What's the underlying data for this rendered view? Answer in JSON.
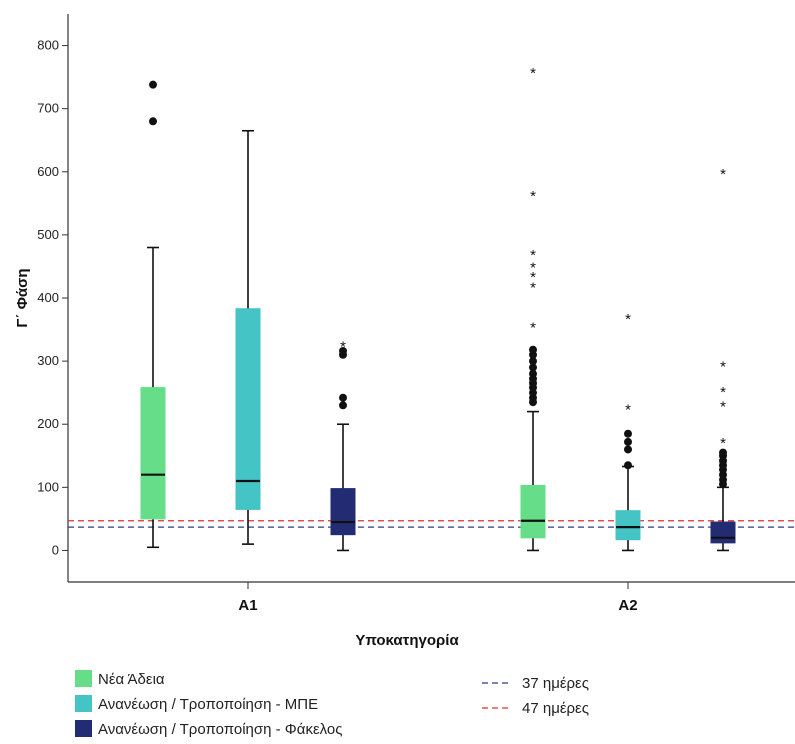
{
  "chart_data": {
    "type": "boxplot",
    "xlabel": "Υποκατηγορία",
    "ylabel": "Γ΄ Φάση",
    "ylim": [
      -50,
      850
    ],
    "yticks": [
      0,
      100,
      200,
      300,
      400,
      500,
      600,
      700,
      800
    ],
    "categories": [
      "A1",
      "A2"
    ],
    "series": [
      {
        "name": "Νέα Άδεια",
        "color": "#66dd88"
      },
      {
        "name": "Ανανέωση / Τροποποίηση - ΜΠΕ",
        "color": "#44c4c4"
      },
      {
        "name": "Ανανέωση / Τροποποίηση - Φάκελος",
        "color": "#232c72"
      }
    ],
    "boxes": [
      {
        "category": "A1",
        "series": 0,
        "min": 5,
        "q1": 50,
        "median": 120,
        "q3": 258,
        "max": 480,
        "outliers": [
          680,
          738
        ],
        "extremes": []
      },
      {
        "category": "A1",
        "series": 1,
        "min": 10,
        "q1": 65,
        "median": 110,
        "q3": 383,
        "max": 665,
        "outliers": [],
        "extremes": []
      },
      {
        "category": "A1",
        "series": 2,
        "min": 0,
        "q1": 25,
        "median": 45,
        "q3": 98,
        "max": 200,
        "outliers": [
          230,
          242,
          310,
          316
        ],
        "extremes": [
          325
        ]
      },
      {
        "category": "A2",
        "series": 0,
        "min": 0,
        "q1": 20,
        "median": 47,
        "q3": 103,
        "max": 220,
        "outliers": [
          235,
          242,
          250,
          258,
          265,
          272,
          280,
          290,
          300,
          310,
          318
        ],
        "extremes": [
          355,
          418,
          435,
          450,
          470,
          563,
          758
        ]
      },
      {
        "category": "A2",
        "series": 1,
        "min": 0,
        "q1": 17,
        "median": 37,
        "q3": 63,
        "max": 133,
        "outliers": [
          135,
          160,
          172,
          185
        ],
        "extremes": [
          225,
          368
        ]
      },
      {
        "category": "A2",
        "series": 2,
        "min": 0,
        "q1": 12,
        "median": 20,
        "q3": 45,
        "max": 100,
        "outliers": [
          105,
          112,
          120,
          128,
          135,
          142,
          150,
          155
        ],
        "extremes": [
          172,
          230,
          253,
          293,
          598
        ]
      }
    ],
    "reference_lines": [
      {
        "name": "37 ημέρες",
        "value": 37,
        "color": "#2b3a8c",
        "style": "dashed"
      },
      {
        "name": "47 ημέρες",
        "value": 47,
        "color": "#e03030",
        "style": "dashed"
      }
    ],
    "grid": false,
    "legend": "bottom"
  }
}
